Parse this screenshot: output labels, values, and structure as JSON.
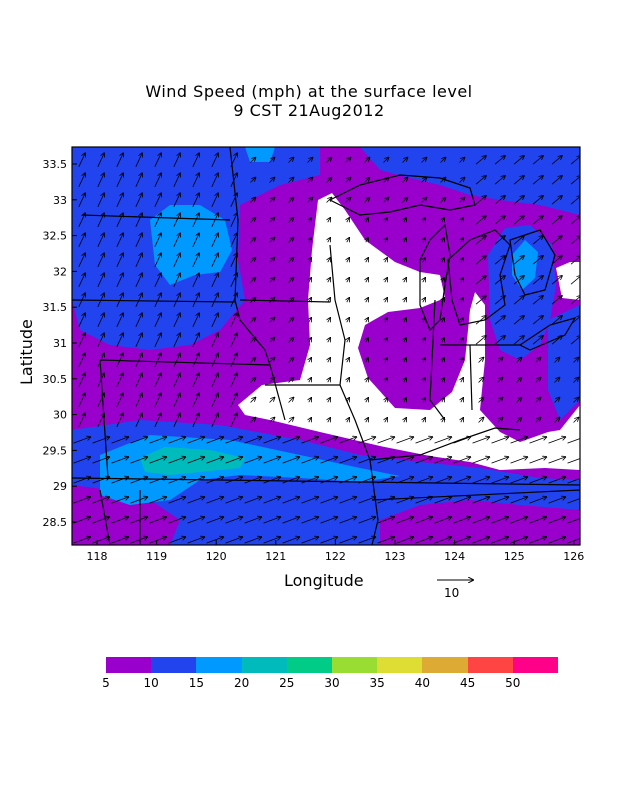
{
  "title": {
    "line1": "Wind Speed (mph) at the surface level",
    "line2": "9 CST 21Aug2012"
  },
  "axes": {
    "xlabel": "Longitude",
    "ylabel": "Latitude",
    "xticks": [
      "118",
      "119",
      "120",
      "121",
      "122",
      "123",
      "124",
      "125",
      "126"
    ],
    "yticks": [
      "28.5",
      "29",
      "29.5",
      "30",
      "30.5",
      "31",
      "31.5",
      "32",
      "32.5",
      "33",
      "33.5"
    ]
  },
  "reference_vector": {
    "label": "10"
  },
  "colorbar": {
    "colors": [
      "#9900cc",
      "#2244ee",
      "#0099ff",
      "#00bbbb",
      "#00cc88",
      "#99dd33",
      "#dddd33",
      "#ddaa33",
      "#ff4444",
      "#ff0088"
    ],
    "labels": [
      "5",
      "10",
      "15",
      "20",
      "25",
      "30",
      "35",
      "40",
      "45",
      "50"
    ]
  },
  "field_colors": {
    "calm": "#ffffff",
    "v5_10": "#9900cc",
    "v10_15": "#2244ee",
    "v15_20": "#0099ff",
    "v20_25": "#00bbbb"
  }
}
